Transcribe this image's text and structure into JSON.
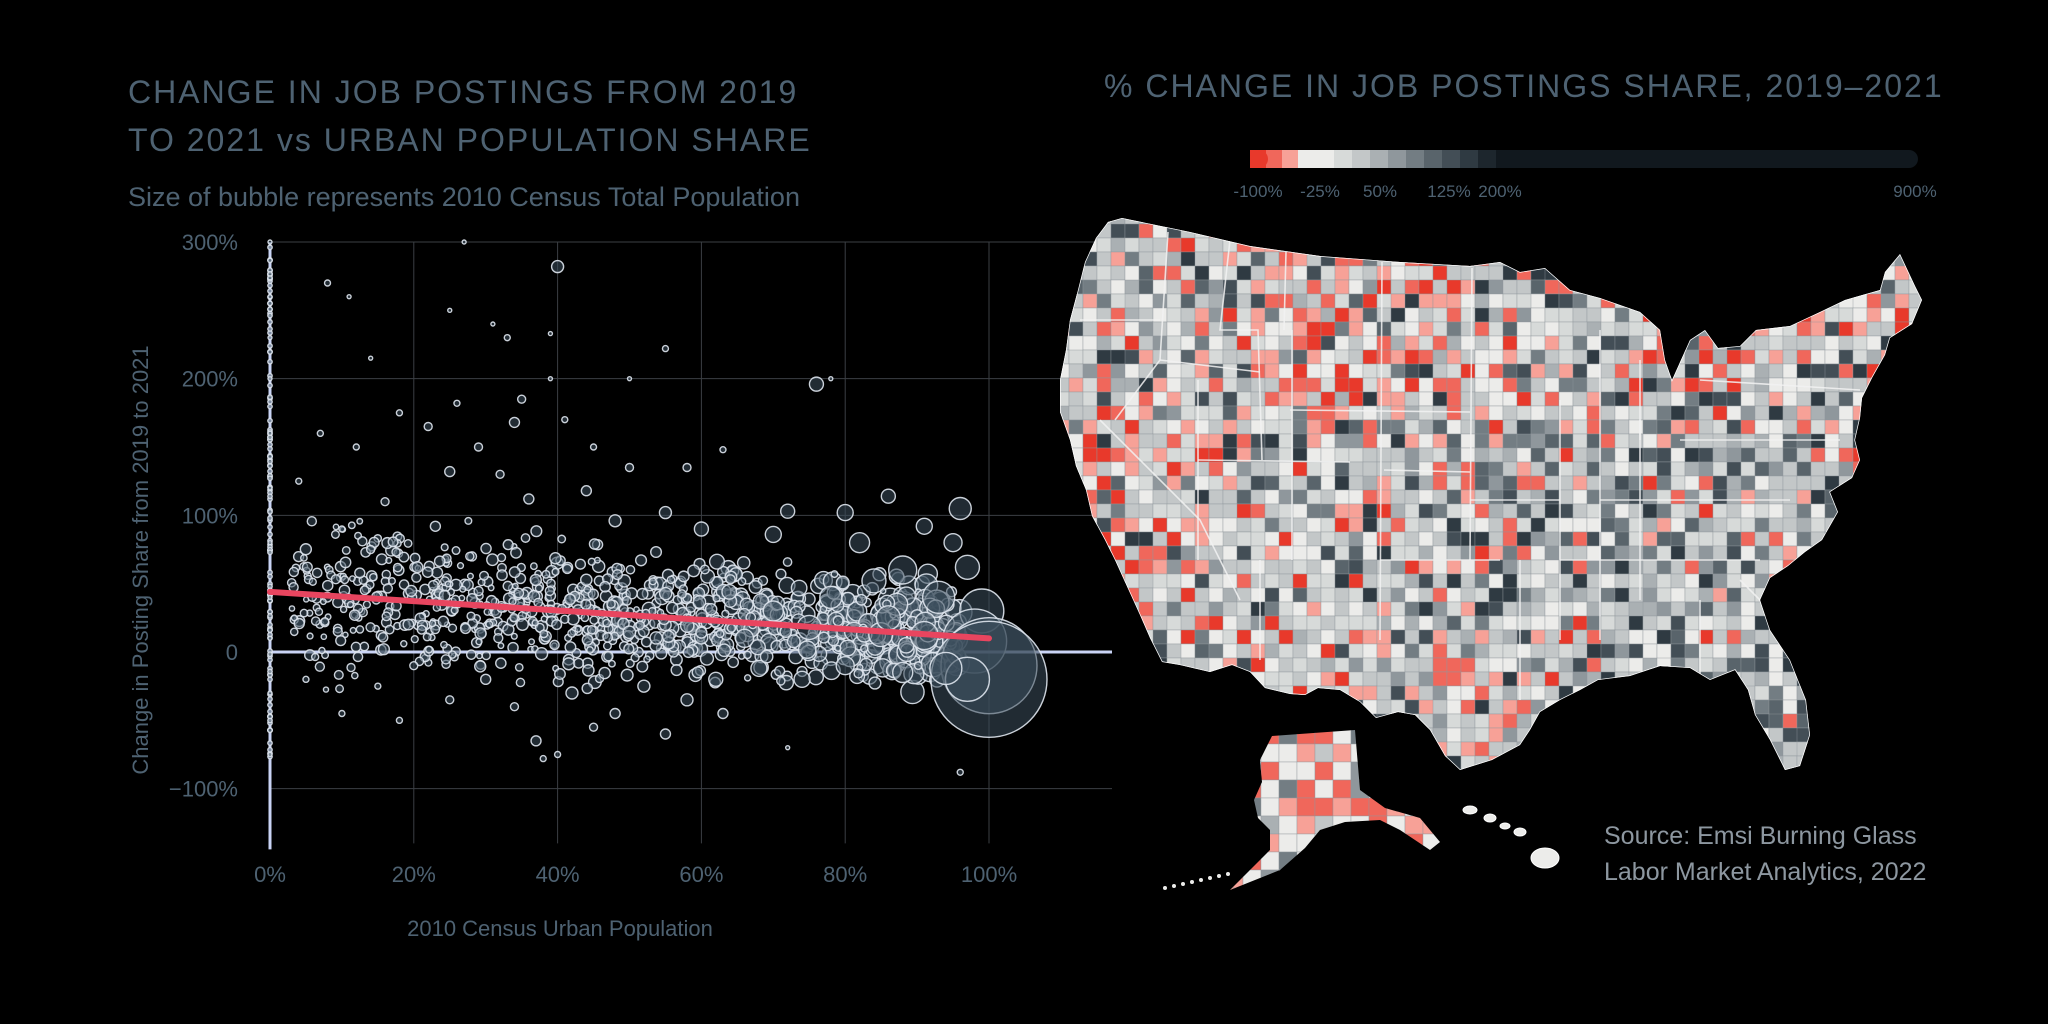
{
  "left": {
    "title_line1": "CHANGE IN JOB POSTINGS FROM 2019",
    "title_line2": "TO 2021 vs URBAN POPULATION SHARE",
    "subtitle": "Size of bubble represents 2010 Census Total Population"
  },
  "right": {
    "title": "% CHANGE IN JOB POSTINGS SHARE, 2019–2021",
    "legend_ticks": [
      "-100%",
      "-25%",
      "50%",
      "125%",
      "200%",
      "900%"
    ],
    "legend_colors": [
      "#e8392b",
      "#f0675b",
      "#f7a197",
      "#ececea",
      "#d7dad9",
      "#c3c7c8",
      "#aab0b3",
      "#8f979c",
      "#737d83",
      "#59646b",
      "#434e56",
      "#2f3a42",
      "#1d262d",
      "#11181e"
    ],
    "source_line1": "Source: Emsi Burning Glass",
    "source_line2": "Labor Market Analytics, 2022"
  },
  "chart_data": [
    {
      "type": "scatter",
      "title": "CHANGE IN JOB POSTINGS FROM 2019 TO 2021 vs URBAN POPULATION SHARE",
      "subtitle": "Size of bubble represents 2010 Census Total Population",
      "xlabel": "2010 Census Urban Population",
      "ylabel": "Change in Posting Share from 2019 to 2021",
      "xlim": [
        0,
        115
      ],
      "ylim": [
        -140,
        300
      ],
      "x_ticks": [
        "0%",
        "20%",
        "40%",
        "60%",
        "80%",
        "100%"
      ],
      "x_tick_values": [
        0,
        20,
        40,
        60,
        80,
        100
      ],
      "y_ticks": [
        "300%",
        "200%",
        "100%",
        "0",
        "−100%"
      ],
      "y_tick_values": [
        300,
        200,
        100,
        0,
        -100
      ],
      "grid": true,
      "colors": {
        "bubble_fill": "#3c4f5c",
        "bubble_stroke": "#dfe6ee",
        "trend": "#e8455f",
        "axis_zero": "#c9d3f5"
      },
      "trend_line": {
        "x": [
          0,
          100
        ],
        "y": [
          44,
          10
        ]
      },
      "points": [
        {
          "x": 0,
          "y": 300,
          "s": 2
        },
        {
          "x": 0,
          "y": 260,
          "s": 2
        },
        {
          "x": 0,
          "y": 230,
          "s": 2
        },
        {
          "x": 0,
          "y": 200,
          "s": 2
        },
        {
          "x": 0,
          "y": 160,
          "s": 2
        },
        {
          "x": 0,
          "y": 120,
          "s": 2
        },
        {
          "x": 0,
          "y": 80,
          "s": 2
        },
        {
          "x": 0,
          "y": 40,
          "s": 2
        },
        {
          "x": 0,
          "y": 10,
          "s": 2
        },
        {
          "x": 0,
          "y": -30,
          "s": 2
        },
        {
          "x": 0,
          "y": -75,
          "s": 2
        },
        {
          "x": 27,
          "y": 300,
          "s": 2
        },
        {
          "x": 8,
          "y": 270,
          "s": 3
        },
        {
          "x": 40,
          "y": 282,
          "s": 6
        },
        {
          "x": 11,
          "y": 260,
          "s": 2
        },
        {
          "x": 25,
          "y": 250,
          "s": 2
        },
        {
          "x": 31,
          "y": 240,
          "s": 2
        },
        {
          "x": 33,
          "y": 230,
          "s": 3
        },
        {
          "x": 39,
          "y": 233,
          "s": 2
        },
        {
          "x": 14,
          "y": 215,
          "s": 2
        },
        {
          "x": 55,
          "y": 222,
          "s": 3
        },
        {
          "x": 76,
          "y": 196,
          "s": 7
        },
        {
          "x": 78,
          "y": 200,
          "s": 2
        },
        {
          "x": 50,
          "y": 200,
          "s": 2
        },
        {
          "x": 39,
          "y": 200,
          "s": 2
        },
        {
          "x": 18,
          "y": 175,
          "s": 3
        },
        {
          "x": 26,
          "y": 182,
          "s": 3
        },
        {
          "x": 35,
          "y": 185,
          "s": 4
        },
        {
          "x": 22,
          "y": 165,
          "s": 4
        },
        {
          "x": 34,
          "y": 168,
          "s": 5
        },
        {
          "x": 41,
          "y": 170,
          "s": 3
        },
        {
          "x": 7,
          "y": 160,
          "s": 3
        },
        {
          "x": 12,
          "y": 150,
          "s": 3
        },
        {
          "x": 29,
          "y": 150,
          "s": 4
        },
        {
          "x": 45,
          "y": 150,
          "s": 3
        },
        {
          "x": 63,
          "y": 148,
          "s": 3
        },
        {
          "x": 4,
          "y": 125,
          "s": 3
        },
        {
          "x": 25,
          "y": 132,
          "s": 5
        },
        {
          "x": 32,
          "y": 130,
          "s": 4
        },
        {
          "x": 50,
          "y": 135,
          "s": 4
        },
        {
          "x": 58,
          "y": 135,
          "s": 4
        },
        {
          "x": 16,
          "y": 110,
          "s": 4
        },
        {
          "x": 36,
          "y": 112,
          "s": 5
        },
        {
          "x": 44,
          "y": 118,
          "s": 5
        },
        {
          "x": 72,
          "y": 103,
          "s": 7
        },
        {
          "x": 80,
          "y": 102,
          "s": 8
        },
        {
          "x": 86,
          "y": 114,
          "s": 7
        },
        {
          "x": 96,
          "y": 105,
          "s": 11
        },
        {
          "x": 91,
          "y": 92,
          "s": 8
        },
        {
          "x": 95,
          "y": 80,
          "s": 9
        },
        {
          "x": 82,
          "y": 80,
          "s": 10
        },
        {
          "x": 70,
          "y": 86,
          "s": 8
        },
        {
          "x": 60,
          "y": 90,
          "s": 7
        },
        {
          "x": 10,
          "y": 90,
          "s": 3
        },
        {
          "x": 14,
          "y": 75,
          "s": 4
        },
        {
          "x": 23,
          "y": 92,
          "s": 5
        },
        {
          "x": 48,
          "y": 96,
          "s": 6
        },
        {
          "x": 55,
          "y": 102,
          "s": 6
        },
        {
          "x": 88,
          "y": 60,
          "s": 14
        },
        {
          "x": 97,
          "y": 62,
          "s": 12
        },
        {
          "x": 93,
          "y": 40,
          "s": 16
        },
        {
          "x": 99,
          "y": 30,
          "s": 22
        },
        {
          "x": 98,
          "y": 8,
          "s": 32
        },
        {
          "x": 100,
          "y": -10,
          "s": 48
        },
        {
          "x": 100,
          "y": -20,
          "s": 58
        },
        {
          "x": 97,
          "y": -20,
          "s": 22
        },
        {
          "x": 94,
          "y": -12,
          "s": 16
        },
        {
          "x": 91,
          "y": 12,
          "s": 14
        },
        {
          "x": 86,
          "y": 25,
          "s": 12
        },
        {
          "x": 84,
          "y": 52,
          "s": 12
        },
        {
          "x": 78,
          "y": 40,
          "s": 11
        },
        {
          "x": 75,
          "y": 18,
          "s": 12
        },
        {
          "x": 70,
          "y": 30,
          "s": 10
        },
        {
          "x": 66,
          "y": 10,
          "s": 9
        },
        {
          "x": 88,
          "y": -15,
          "s": 10
        },
        {
          "x": 80,
          "y": -10,
          "s": 9
        },
        {
          "x": 74,
          "y": -20,
          "s": 8
        },
        {
          "x": 68,
          "y": -12,
          "s": 8
        },
        {
          "x": 62,
          "y": -20,
          "s": 7
        },
        {
          "x": 58,
          "y": -35,
          "s": 6
        },
        {
          "x": 55,
          "y": -60,
          "s": 5
        },
        {
          "x": 48,
          "y": -45,
          "s": 5
        },
        {
          "x": 42,
          "y": -30,
          "s": 6
        },
        {
          "x": 37,
          "y": -65,
          "s": 5
        },
        {
          "x": 38,
          "y": -78,
          "s": 3
        },
        {
          "x": 40,
          "y": -75,
          "s": 3
        },
        {
          "x": 72,
          "y": -70,
          "s": 2
        },
        {
          "x": 96,
          "y": -88,
          "s": 3
        },
        {
          "x": 15,
          "y": -25,
          "s": 3
        },
        {
          "x": 10,
          "y": -45,
          "s": 3
        },
        {
          "x": 5,
          "y": -20,
          "s": 3
        },
        {
          "x": 20,
          "y": -10,
          "s": 4
        },
        {
          "x": 30,
          "y": -20,
          "s": 5
        },
        {
          "x": 34,
          "y": -40,
          "s": 4
        },
        {
          "x": 25,
          "y": -35,
          "s": 4
        },
        {
          "x": 52,
          "y": -25,
          "s": 6
        },
        {
          "x": 63,
          "y": -45,
          "s": 5
        },
        {
          "x": 45,
          "y": -55,
          "s": 4
        },
        {
          "x": 18,
          "y": -50,
          "s": 3
        }
      ],
      "point_cloud": {
        "count": 1100,
        "x_range": [
          3,
          96
        ],
        "y_center_at_0": 45,
        "y_center_at_100": 10,
        "y_spread": 52
      }
    },
    {
      "type": "choropleth",
      "title": "% CHANGE IN JOB POSTINGS SHARE, 2019–2021",
      "legend_ticks": [
        "-100%",
        "-25%",
        "50%",
        "125%",
        "200%",
        "900%"
      ],
      "legend_range": [
        -100,
        900
      ]
    }
  ]
}
